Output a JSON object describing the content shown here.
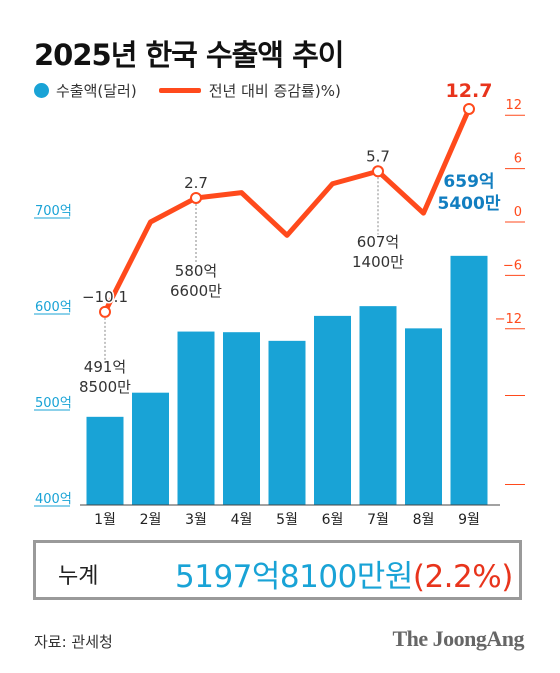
{
  "title": "2025년 한국 수출액 추이",
  "legend": {
    "bar": "수출액(달러)",
    "line": "전년 대비 증감률)%)"
  },
  "colors": {
    "bar": "#19a3d6",
    "line": "#ff4a1c",
    "highlight": "#e8341c",
    "value_highlight": "#127ec0",
    "axis_left": "#19a3d6"
  },
  "total": {
    "label": "누계",
    "value": "5197억8100만원",
    "rate": "(2.2%)"
  },
  "source": "자료: 관세청",
  "brand": "The JoongAng",
  "chart_data": {
    "type": "bar+line",
    "categories": [
      "1월",
      "2월",
      "3월",
      "4월",
      "5월",
      "6월",
      "7월",
      "8월",
      "9월"
    ],
    "series": [
      {
        "name": "수출액(달러)",
        "unit": "억",
        "values": [
          491.85,
          517,
          580.66,
          580,
          571,
          597,
          607.14,
          584,
          659.54
        ]
      },
      {
        "name": "전년 대비 증감률)%)",
        "unit": "%",
        "values": [
          -10.1,
          0,
          2.7,
          3.3,
          -1.5,
          4.3,
          5.7,
          1.0,
          12.7
        ]
      }
    ],
    "left_axis": {
      "ticks": [
        "700억",
        "600억",
        "500억",
        "400억"
      ],
      "range": [
        400,
        700
      ]
    },
    "right_axis": {
      "ticks": [
        "12",
        "6",
        "0",
        "−6",
        "−12"
      ],
      "range": [
        -12,
        12
      ]
    },
    "bar_labels": [
      {
        "index": 0,
        "line1": "491억",
        "line2": "8500만"
      },
      {
        "index": 2,
        "line1": "580억",
        "line2": "6600만"
      },
      {
        "index": 6,
        "line1": "607억",
        "line2": "1400만"
      },
      {
        "index": 8,
        "line1": "659억",
        "line2": "5400만"
      }
    ],
    "line_labels": [
      {
        "index": 0,
        "text": "−10.1"
      },
      {
        "index": 2,
        "text": "2.7"
      },
      {
        "index": 6,
        "text": "5.7"
      },
      {
        "index": 8,
        "text": "12.7"
      }
    ]
  }
}
